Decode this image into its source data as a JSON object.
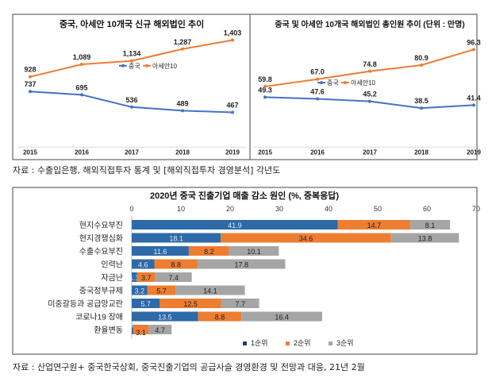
{
  "chart_data": [
    {
      "type": "line",
      "title": "중국, 아세안 10개국 신규 해외법인 추이",
      "categories": [
        "2015",
        "2016",
        "2017",
        "2018",
        "2019"
      ],
      "series": [
        {
          "name": "중국",
          "values": [
            737,
            695,
            536,
            489,
            467
          ],
          "labels": [
            "737",
            "695",
            "536",
            "489",
            "467"
          ],
          "color": "#4472c4"
        },
        {
          "name": "아세안10",
          "values": [
            928,
            1089,
            1134,
            1287,
            1403
          ],
          "labels": [
            "928",
            "1,089",
            "1,134",
            "1,287",
            "1,403"
          ],
          "color": "#ed7d31"
        }
      ],
      "legend": "middle"
    },
    {
      "type": "line",
      "title": "중국 및 아세안 10개국 해외법인 총인원 추이 (단위 : 만명)",
      "categories": [
        "2015",
        "2016",
        "2017",
        "2018",
        "2019"
      ],
      "series": [
        {
          "name": "중국",
          "values": [
            49.3,
            47.6,
            45.2,
            38.5,
            41.4
          ],
          "labels": [
            "49.3",
            "47.6",
            "45.2",
            "38.5",
            "41.4"
          ],
          "color": "#4472c4"
        },
        {
          "name": "아세안10",
          "values": [
            59.8,
            67.0,
            74.8,
            80.9,
            96.3
          ],
          "labels": [
            "59.8",
            "67.0",
            "74.8",
            "80.9",
            "96.3"
          ],
          "color": "#ed7d31"
        }
      ],
      "legend": "middle"
    },
    {
      "type": "bar",
      "orientation": "horizontal",
      "stacked": true,
      "title": "2020년 중국 진출기업 매출 감소 원인 (%, 중복응답)",
      "categories": [
        "현지수요부진",
        "현지경쟁심화",
        "수출수요부진",
        "인력난",
        "자금난",
        "중국정부규제",
        "미중갈등과 공급망교란",
        "코로나19 장애",
        "환율변동"
      ],
      "xlim": [
        0,
        70
      ],
      "xticks": [
        "0",
        "10",
        "20",
        "30",
        "40",
        "50",
        "60",
        "70"
      ],
      "series": [
        {
          "name": "1순위",
          "values": [
            41.9,
            18.1,
            11.6,
            4.6,
            1.1,
            3.2,
            5.7,
            13.5,
            0.3
          ],
          "color": "#2e6aa8"
        },
        {
          "name": "2순위",
          "values": [
            14.7,
            34.6,
            8.2,
            8.8,
            3.7,
            5.7,
            12.5,
            8.8,
            3.1
          ],
          "color": "#ed7d31"
        },
        {
          "name": "3순위",
          "values": [
            8.1,
            13.8,
            10.1,
            17.8,
            7.4,
            14.1,
            7.7,
            16.4,
            4.7
          ],
          "color": "#a5a5a5"
        }
      ],
      "legend": "bottom"
    }
  ],
  "sources": {
    "top": "자료 : 수출입은행, 해외직접투자 통계 및 [해외직접투자 경영분석] 각년도",
    "bottom": "자료 : 산업연구원+ 중국한국상회, 중국진출기업의 공급사슬 경영환경 및 전망과 대응, 21년 2월"
  }
}
